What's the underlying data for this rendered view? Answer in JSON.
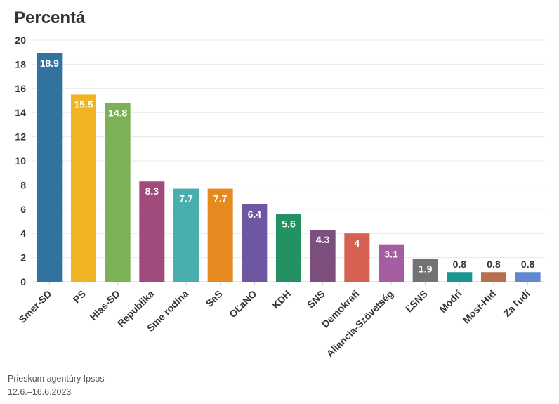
{
  "chart_data": {
    "type": "bar",
    "title": "Percentá",
    "categories": [
      "Smer-SD",
      "PS",
      "Hlas-SD",
      "Republika",
      "Sme rodina",
      "SaS",
      "OĽaNO",
      "KDH",
      "SNS",
      "Demokrati",
      "Aliancia-Szövetség",
      "ĽSNS",
      "Modrí",
      "Most-Híd",
      "Za ľudí"
    ],
    "values": [
      18.9,
      15.5,
      14.8,
      8.3,
      7.7,
      7.7,
      6.4,
      5.6,
      4.3,
      4,
      3.1,
      1.9,
      0.8,
      0.8,
      0.8
    ],
    "value_labels": [
      "18.9",
      "15.5",
      "14.8",
      "8.3",
      "7.7",
      "7.7",
      "6.4",
      "5.6",
      "4.3",
      "4",
      "3.1",
      "1.9",
      "0.8",
      "0.8",
      "0.8"
    ],
    "colors": [
      "#32729e",
      "#f0b323",
      "#7db157",
      "#a04b7b",
      "#4aaeaf",
      "#e6891f",
      "#6f56a0",
      "#249163",
      "#7d4f7c",
      "#d66152",
      "#a45da0",
      "#727272",
      "#1a9690",
      "#b7704d",
      "#5f88cf"
    ],
    "ylim": [
      0,
      20
    ],
    "yticks": [
      "0",
      "2",
      "4",
      "6",
      "8",
      "10",
      "12",
      "14",
      "16",
      "18",
      "20"
    ],
    "xlabel": "",
    "ylabel": "",
    "grid": true,
    "legend": "none"
  },
  "footer": {
    "source_line1": "Prieskum agentúry Ipsos",
    "source_line2": "12.6.–16.6.2023"
  }
}
